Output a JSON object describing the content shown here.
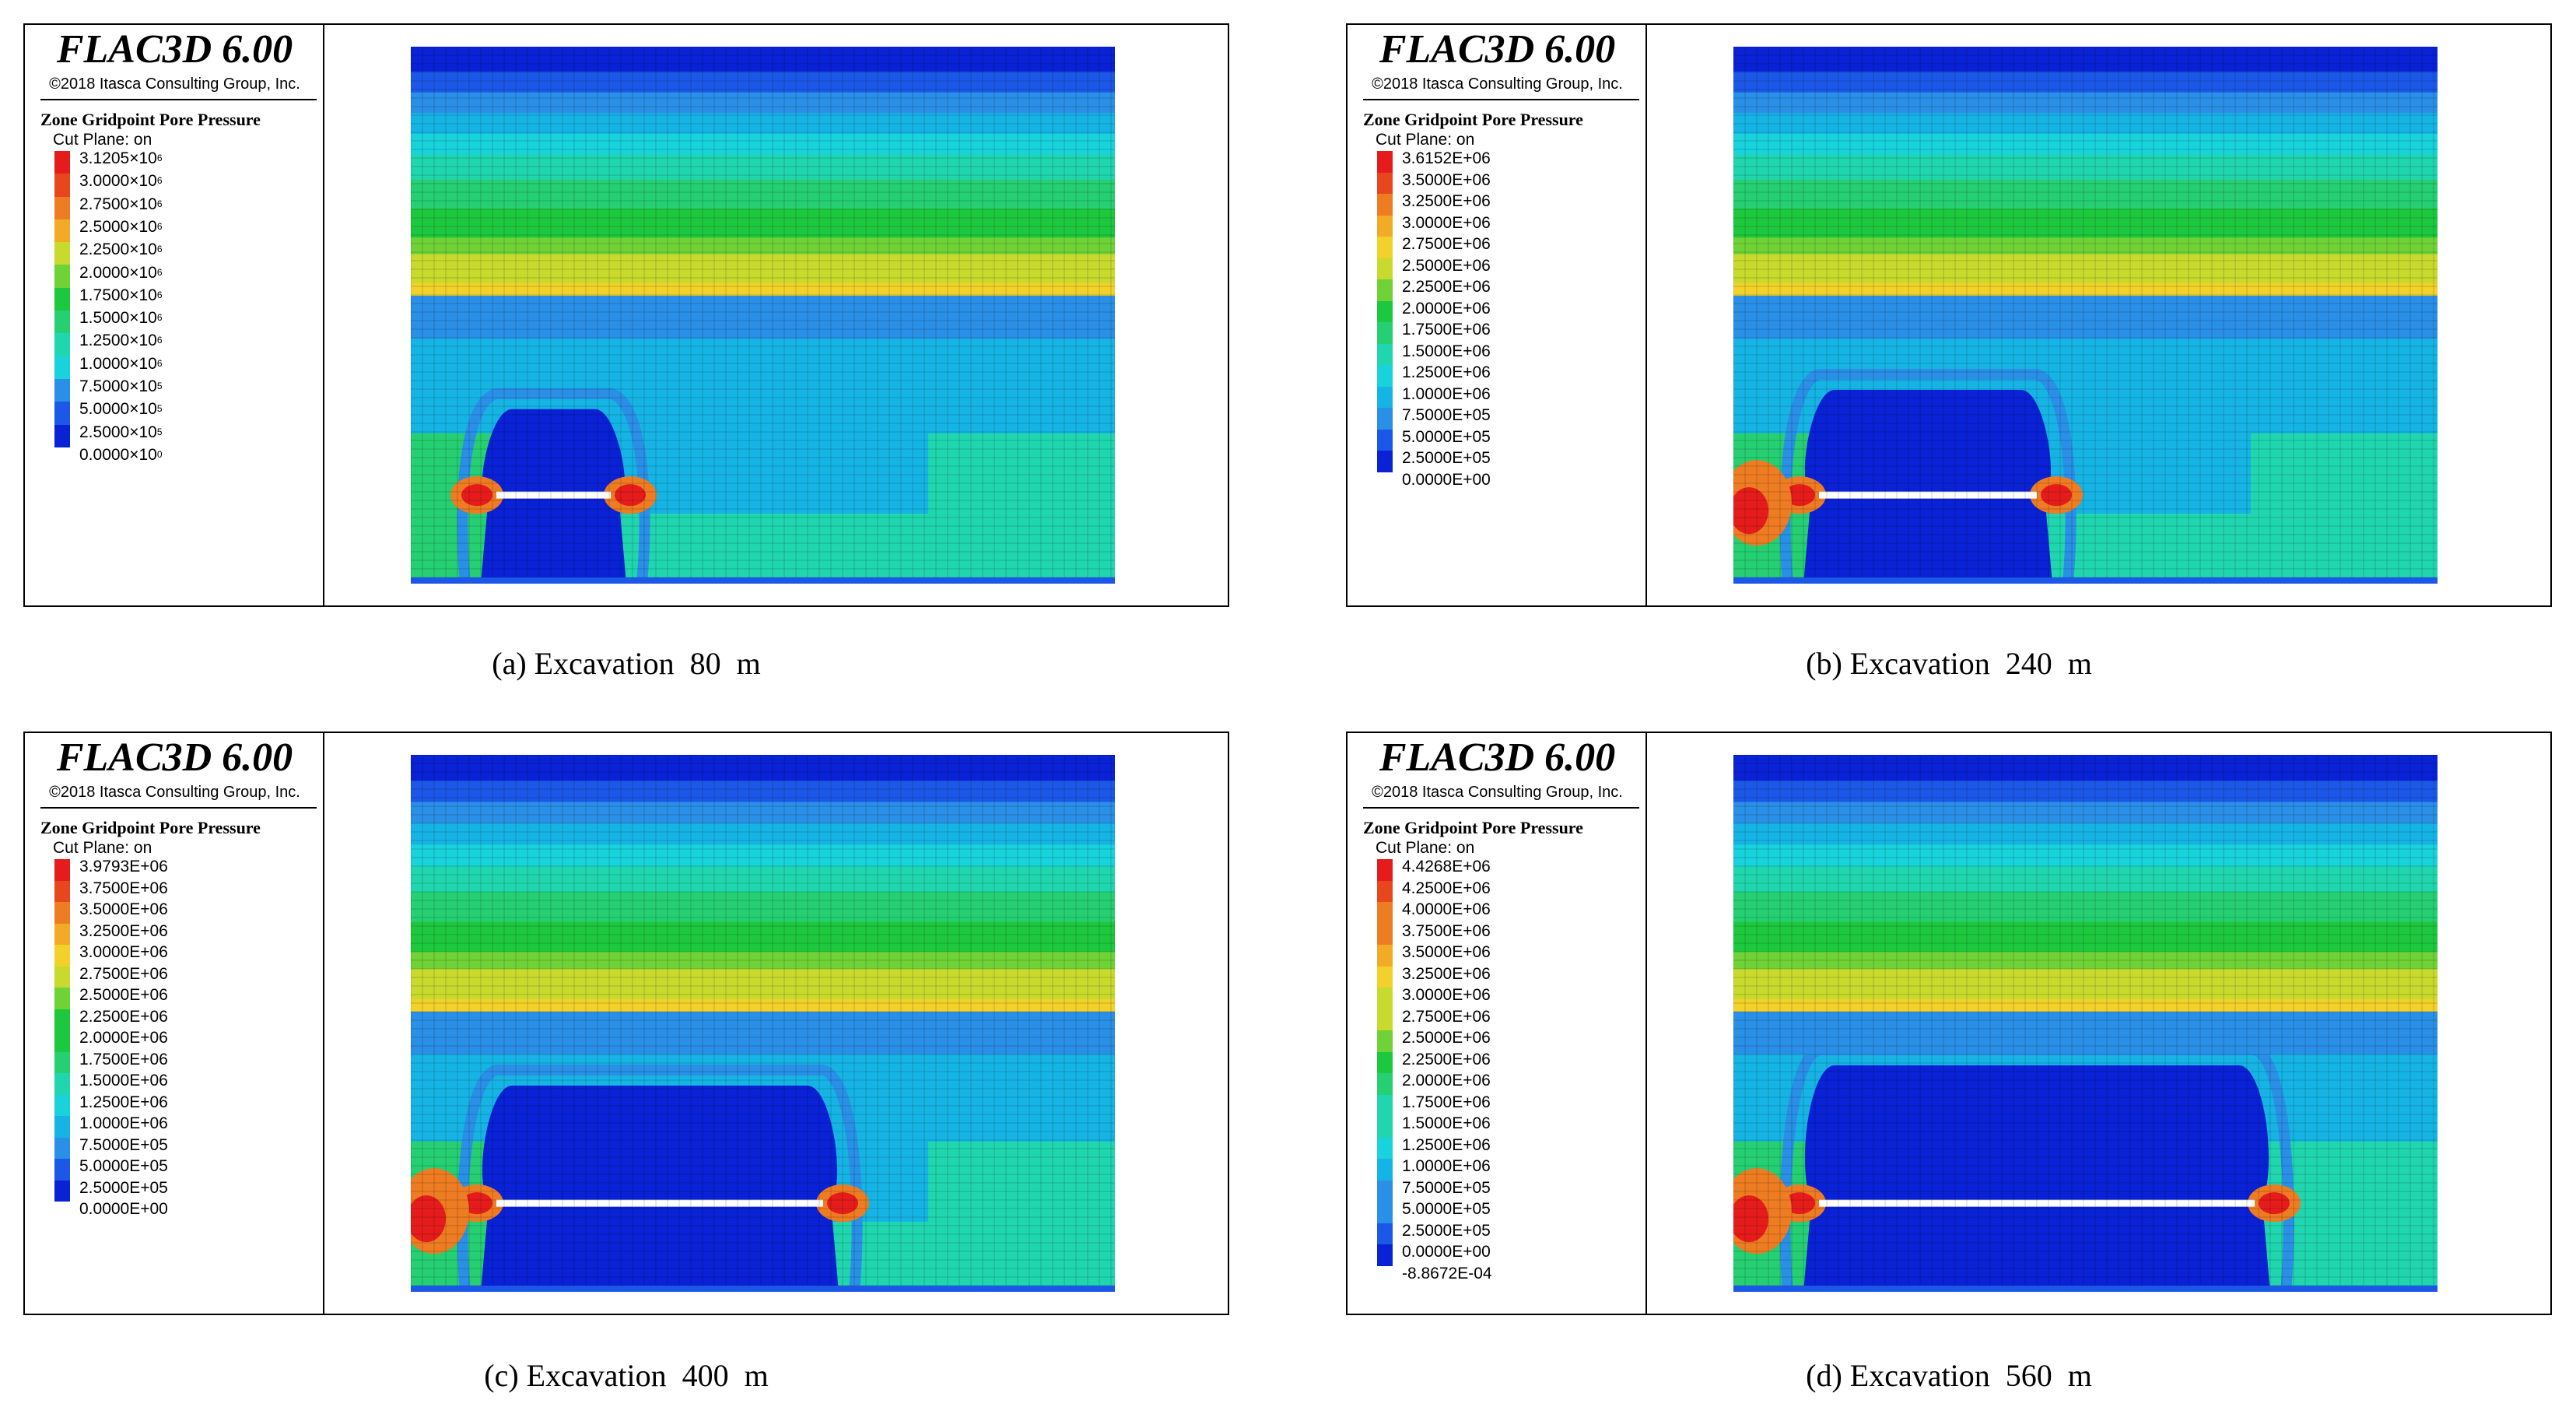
{
  "colors": {
    "scale": [
      "#0a22d6",
      "#1c58e8",
      "#2a8fe6",
      "#16b4e4",
      "#18d2dc",
      "#20d6ae",
      "#26cf72",
      "#1ec83e",
      "#6fd236",
      "#c8da2e",
      "#f2d12a",
      "#f2ab26",
      "#ee7c22",
      "#e8461c",
      "#e61c1c"
    ],
    "excavation_line": "#ffffff"
  },
  "panels": [
    {
      "brand": "FLAC3D 6.00",
      "copyright": "©2018 Itasca Consulting Group, Inc.",
      "legend_title": "Zone Gridpoint Pore Pressure",
      "cut_plane": "Cut Plane: on",
      "legend_values": [
        {
          "m": "3.1205",
          "e": "6"
        },
        {
          "m": "3.0000",
          "e": "6"
        },
        {
          "m": "2.7500",
          "e": "6"
        },
        {
          "m": "2.5000",
          "e": "6"
        },
        {
          "m": "2.2500",
          "e": "6"
        },
        {
          "m": "2.0000",
          "e": "6"
        },
        {
          "m": "1.7500",
          "e": "6"
        },
        {
          "m": "1.5000",
          "e": "6"
        },
        {
          "m": "1.2500",
          "e": "6"
        },
        {
          "m": "1.0000",
          "e": "6"
        },
        {
          "m": "7.5000",
          "e": "5"
        },
        {
          "m": "5.0000",
          "e": "5"
        },
        {
          "m": "2.5000",
          "e": "5"
        },
        {
          "m": "0.0000",
          "e": "0"
        }
      ],
      "caption": "(a) Excavation  80  m",
      "excavation_fraction": 0.11
    },
    {
      "brand": "FLAC3D 6.00",
      "copyright": "©2018 Itasca Consulting Group, Inc.",
      "legend_title": "Zone Gridpoint Pore Pressure",
      "cut_plane": "Cut Plane: on",
      "legend_values": [
        "3.6152E+06",
        "3.5000E+06",
        "3.2500E+06",
        "3.0000E+06",
        "2.7500E+06",
        "2.5000E+06",
        "2.2500E+06",
        "2.0000E+06",
        "1.7500E+06",
        "1.5000E+06",
        "1.2500E+06",
        "1.0000E+06",
        "7.5000E+05",
        "5.0000E+05",
        "2.5000E+05",
        "0.0000E+00"
      ],
      "caption": "(b) Excavation  240  m",
      "excavation_fraction": 0.3
    },
    {
      "brand": "FLAC3D 6.00",
      "copyright": "©2018 Itasca Consulting Group, Inc.",
      "legend_title": "Zone Gridpoint Pore Pressure",
      "cut_plane": "Cut Plane: on",
      "legend_values": [
        "3.9793E+06",
        "3.7500E+06",
        "3.5000E+06",
        "3.2500E+06",
        "3.0000E+06",
        "2.7500E+06",
        "2.5000E+06",
        "2.2500E+06",
        "2.0000E+06",
        "1.7500E+06",
        "1.5000E+06",
        "1.2500E+06",
        "1.0000E+06",
        "7.5000E+05",
        "5.0000E+05",
        "2.5000E+05",
        "0.0000E+00"
      ],
      "caption": "(c) Excavation  400  m",
      "excavation_fraction": 0.5
    },
    {
      "brand": "FLAC3D 6.00",
      "copyright": "©2018 Itasca Consulting Group, Inc.",
      "legend_title": "Zone Gridpoint Pore Pressure",
      "cut_plane": "Cut Plane: on",
      "legend_values": [
        "4.4268E+06",
        "4.2500E+06",
        "4.0000E+06",
        "3.7500E+06",
        "3.5000E+06",
        "3.2500E+06",
        "3.0000E+06",
        "2.7500E+06",
        "2.5000E+06",
        "2.2500E+06",
        "2.0000E+06",
        "1.7500E+06",
        "1.5000E+06",
        "1.2500E+06",
        "1.0000E+06",
        "7.5000E+05",
        "5.0000E+05",
        "2.5000E+05",
        "0.0000E+00",
        "-8.8672E-04"
      ],
      "caption": "(d) Excavation  560  m",
      "excavation_fraction": 0.7
    }
  ]
}
